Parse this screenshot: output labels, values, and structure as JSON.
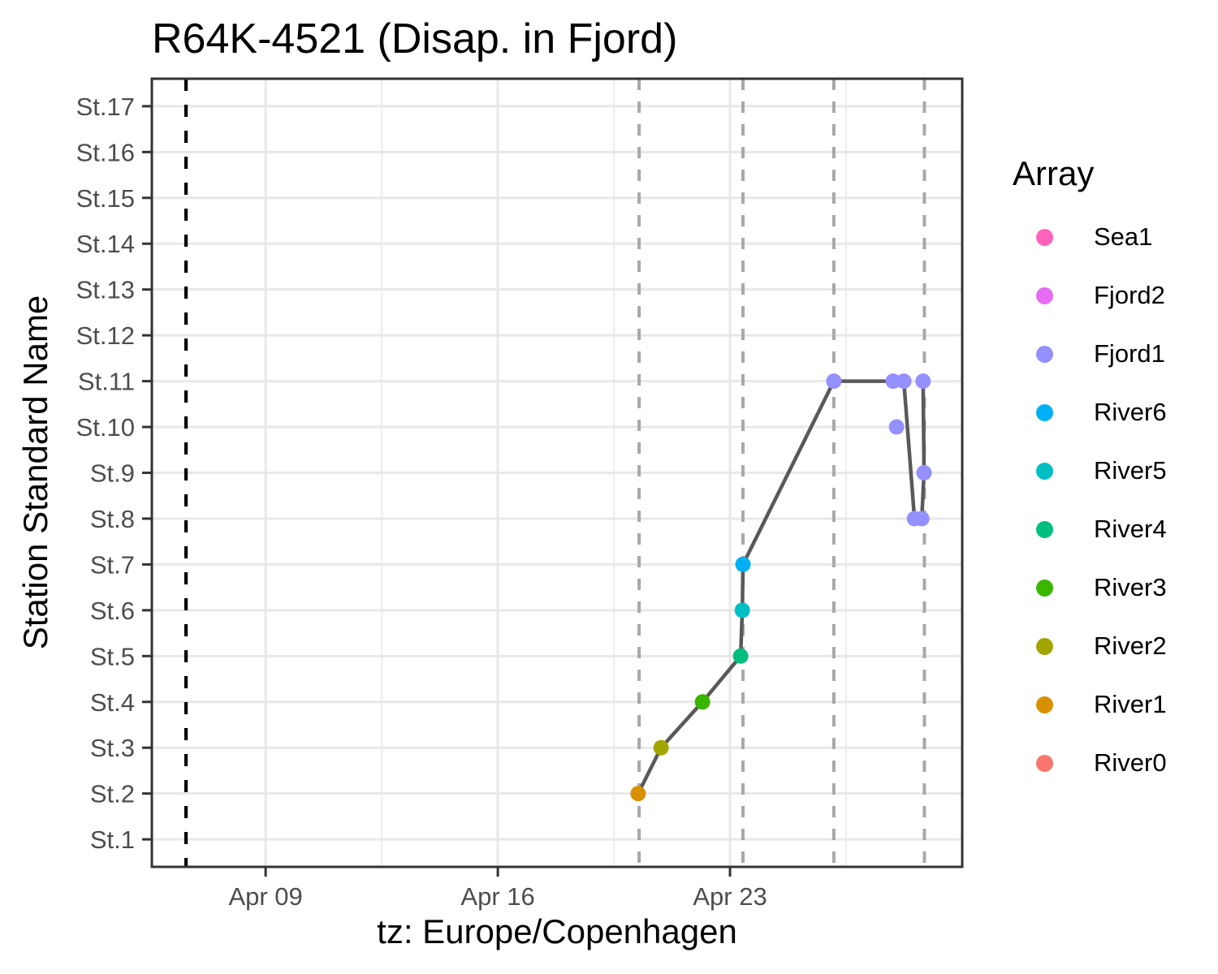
{
  "title": "R64K-4521 (Disap. in Fjord)",
  "x_axis_title": "tz: Europe/Copenhagen",
  "y_axis_title": "Station Standard Name",
  "legend": {
    "title": "Array",
    "items": [
      {
        "label": "Sea1",
        "color": "#FF62BC"
      },
      {
        "label": "Fjord2",
        "color": "#E76BF3"
      },
      {
        "label": "Fjord1",
        "color": "#9590FF"
      },
      {
        "label": "River6",
        "color": "#00B0F6"
      },
      {
        "label": "River5",
        "color": "#00BFC4"
      },
      {
        "label": "River4",
        "color": "#00BF7D"
      },
      {
        "label": "River3",
        "color": "#39B600"
      },
      {
        "label": "River2",
        "color": "#A3A500"
      },
      {
        "label": "River1",
        "color": "#D89000"
      },
      {
        "label": "River0",
        "color": "#F8766D"
      }
    ]
  },
  "chart_data": {
    "type": "scatter",
    "title": "R64K-4521 (Disap. in Fjord)",
    "xlabel": "tz: Europe/Copenhagen",
    "ylabel": "Station Standard Name",
    "x_unit": "day of April (fractional), tz Europe/Copenhagen",
    "x_domain": [
      5.57,
      30.0
    ],
    "x_ticks": [
      {
        "day": 9,
        "label": "Apr 09"
      },
      {
        "day": 16,
        "label": "Apr 16"
      },
      {
        "day": 23,
        "label": "Apr 23"
      }
    ],
    "x_minor_ticks": [
      12.5,
      19.5,
      26.5
    ],
    "y_categories": [
      "St.1",
      "St.2",
      "St.3",
      "St.4",
      "St.5",
      "St.6",
      "St.7",
      "St.8",
      "St.9",
      "St.10",
      "St.11",
      "St.12",
      "St.13",
      "St.14",
      "St.15",
      "St.16",
      "St.17"
    ],
    "grid": true,
    "legend_position": "right",
    "release_vline": {
      "day": 6.6,
      "style": "dashed",
      "color": "#000000"
    },
    "event_vlines": {
      "days": [
        20.26,
        23.39,
        26.13,
        28.86
      ],
      "style": "dashed",
      "color": "#A8A8A8"
    },
    "detections": [
      {
        "apr_day": 20.23,
        "station": "St.2",
        "array": "River1"
      },
      {
        "apr_day": 20.92,
        "station": "St.3",
        "array": "River2"
      },
      {
        "apr_day": 22.17,
        "station": "St.4",
        "array": "River3"
      },
      {
        "apr_day": 23.32,
        "station": "St.5",
        "array": "River4"
      },
      {
        "apr_day": 23.37,
        "station": "St.6",
        "array": "River5"
      },
      {
        "apr_day": 23.39,
        "station": "St.7",
        "array": "River6"
      },
      {
        "apr_day": 26.13,
        "station": "St.11",
        "array": "Fjord1"
      },
      {
        "apr_day": 27.92,
        "station": "St.11",
        "array": "Fjord1"
      },
      {
        "apr_day": 28.02,
        "station": "St.10",
        "array": "Fjord1",
        "connected": false
      },
      {
        "apr_day": 28.24,
        "station": "St.11",
        "array": "Fjord1"
      },
      {
        "apr_day": 28.56,
        "station": "St.8",
        "array": "Fjord1"
      },
      {
        "apr_day": 28.78,
        "station": "St.8",
        "array": "Fjord1"
      },
      {
        "apr_day": 28.85,
        "station": "St.9",
        "array": "Fjord1"
      },
      {
        "apr_day": 28.82,
        "station": "St.11",
        "array": "Fjord1"
      }
    ],
    "style": {
      "path_color": "#595959",
      "path_width": 4.5,
      "point_radius": 9.5,
      "grid_major_color": "#E8E8E8",
      "grid_minor_color": "#F0F0F0",
      "panel_border_color": "#333333",
      "tick_color": "#333333",
      "tick_text_color": "#4D4D4D",
      "background": "#FFFFFF"
    }
  }
}
